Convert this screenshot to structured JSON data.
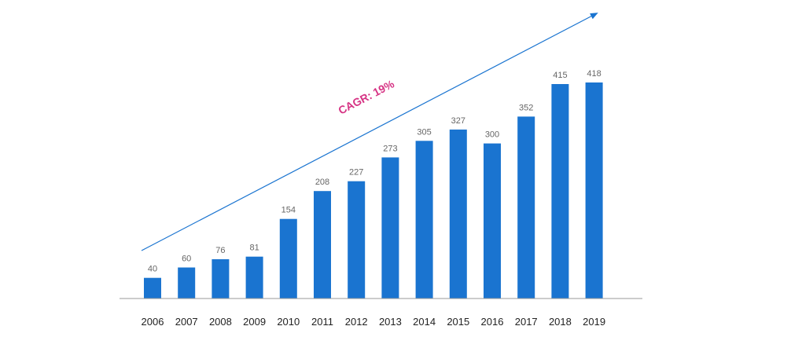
{
  "chart_data": {
    "type": "bar",
    "categories": [
      "2006",
      "2007",
      "2008",
      "2009",
      "2010",
      "2011",
      "2012",
      "2013",
      "2014",
      "2015",
      "2016",
      "2017",
      "2018",
      "2019"
    ],
    "values": [
      40,
      60,
      76,
      81,
      154,
      208,
      227,
      273,
      305,
      327,
      300,
      352,
      415,
      418
    ],
    "title": "",
    "xlabel": "",
    "ylabel": "",
    "ylim": [
      0,
      418
    ],
    "grid": false,
    "legend": "none",
    "annotation": "CAGR: 19%",
    "colors": {
      "bar": "#1a74d0",
      "arrow": "#1a74d0",
      "annotation": "#d63384",
      "axis": "#999999",
      "value_label": "#666666",
      "tick_label": "#222222"
    }
  }
}
